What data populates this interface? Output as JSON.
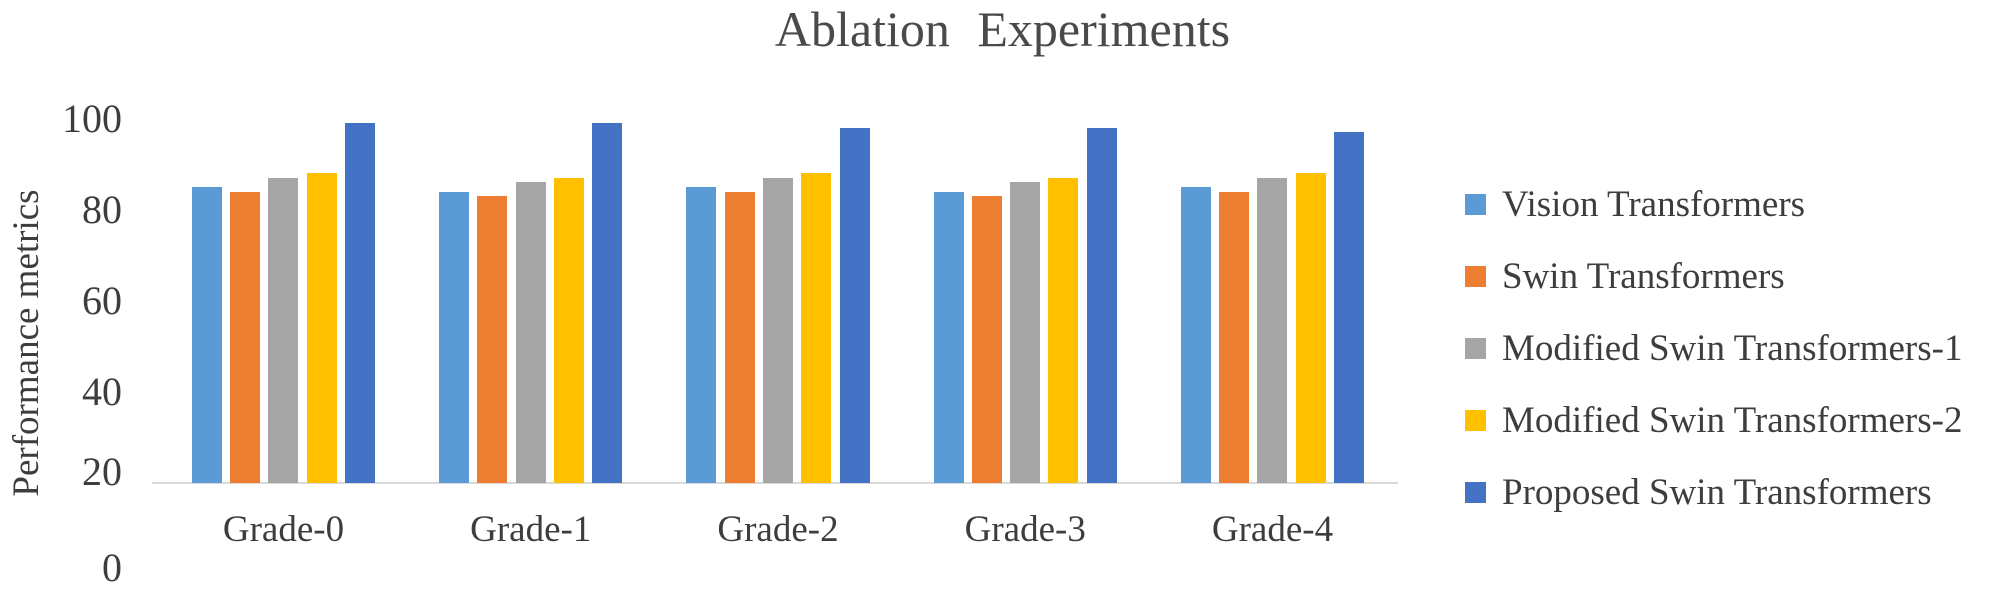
{
  "title": "Ablation Experiments",
  "axes": {
    "y_label": "Performance metrics",
    "y_tick_labels": [
      "100",
      "80",
      "60",
      "40",
      "20",
      "0"
    ],
    "x_category_labels": [
      "Grade-0",
      "Grade-1",
      "Grade-2",
      "Grade-3",
      "Grade-4"
    ]
  },
  "chart_data": {
    "type": "bar",
    "title": "Ablation Experiments",
    "xlabel": "",
    "ylabel": "Performance metrics",
    "ylim": [
      0,
      100
    ],
    "y_ticks": [
      0,
      20,
      40,
      60,
      80,
      100
    ],
    "axis_crosses_at": 20,
    "grid": false,
    "legend_position": "right",
    "categories": [
      "Grade-0",
      "Grade-1",
      "Grade-2",
      "Grade-3",
      "Grade-4"
    ],
    "series": [
      {
        "name": "Vision Transformers",
        "color": "#5B9BD5",
        "values": [
          85,
          84,
          85,
          84,
          85
        ]
      },
      {
        "name": "Swin Transformers",
        "color": "#ED7D31",
        "values": [
          84,
          83,
          84,
          83,
          84
        ]
      },
      {
        "name": "Modified Swin Transformers-1",
        "color": "#A5A5A5",
        "values": [
          87,
          86,
          87,
          86,
          87
        ]
      },
      {
        "name": "Modified Swin Transformers-2",
        "color": "#FFC000",
        "values": [
          88,
          87,
          88,
          87,
          88
        ]
      },
      {
        "name": "Proposed Swin Transformers",
        "color": "#4472C4",
        "values": [
          99,
          99,
          98,
          98,
          97
        ]
      }
    ]
  },
  "colors": {
    "title_text": "#4a4a4a",
    "axis_text": "#3d3d3d",
    "axis_line": "#d9d9d9",
    "background": "#ffffff"
  }
}
